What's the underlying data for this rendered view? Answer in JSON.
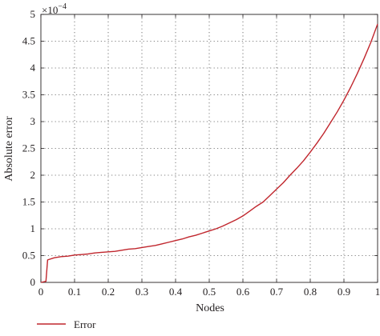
{
  "chart_data": {
    "type": "line",
    "title": "",
    "xlabel": "Nodes",
    "ylabel": "Absolute error",
    "y_exponent_base": "×10",
    "y_exponent_power": "−4",
    "xlim": [
      0,
      1
    ],
    "ylim": [
      0,
      5
    ],
    "x_ticks": [
      "0",
      "0.1",
      "0.2",
      "0.3",
      "0.4",
      "0.5",
      "0.6",
      "0.7",
      "0.8",
      "0.9",
      "1"
    ],
    "y_ticks": [
      "0",
      "0.5",
      "1",
      "1.5",
      "2",
      "2.5",
      "3",
      "3.5",
      "4",
      "4.5",
      "5"
    ],
    "grid": true,
    "legend_position": "bottom-left",
    "colors": {
      "series": "#c0262d",
      "axis": "#231f20",
      "grid": "#555555"
    },
    "series": [
      {
        "name": "Error",
        "x": [
          0.0,
          0.015,
          0.02,
          0.04,
          0.06,
          0.08,
          0.1,
          0.12,
          0.14,
          0.16,
          0.18,
          0.2,
          0.22,
          0.24,
          0.26,
          0.28,
          0.3,
          0.32,
          0.34,
          0.36,
          0.38,
          0.4,
          0.42,
          0.44,
          0.46,
          0.48,
          0.5,
          0.52,
          0.54,
          0.56,
          0.58,
          0.6,
          0.62,
          0.64,
          0.66,
          0.68,
          0.7,
          0.72,
          0.74,
          0.76,
          0.78,
          0.8,
          0.82,
          0.84,
          0.86,
          0.88,
          0.9,
          0.92,
          0.94,
          0.96,
          0.98,
          1.0
        ],
        "y": [
          0.0,
          0.02,
          0.42,
          0.46,
          0.48,
          0.49,
          0.51,
          0.52,
          0.53,
          0.55,
          0.56,
          0.57,
          0.58,
          0.6,
          0.62,
          0.63,
          0.65,
          0.67,
          0.69,
          0.72,
          0.75,
          0.78,
          0.81,
          0.85,
          0.88,
          0.92,
          0.96,
          1.0,
          1.05,
          1.11,
          1.17,
          1.24,
          1.33,
          1.42,
          1.5,
          1.62,
          1.74,
          1.86,
          2.0,
          2.13,
          2.27,
          2.43,
          2.6,
          2.78,
          2.98,
          3.18,
          3.4,
          3.64,
          3.9,
          4.18,
          4.48,
          4.82
        ]
      }
    ]
  }
}
